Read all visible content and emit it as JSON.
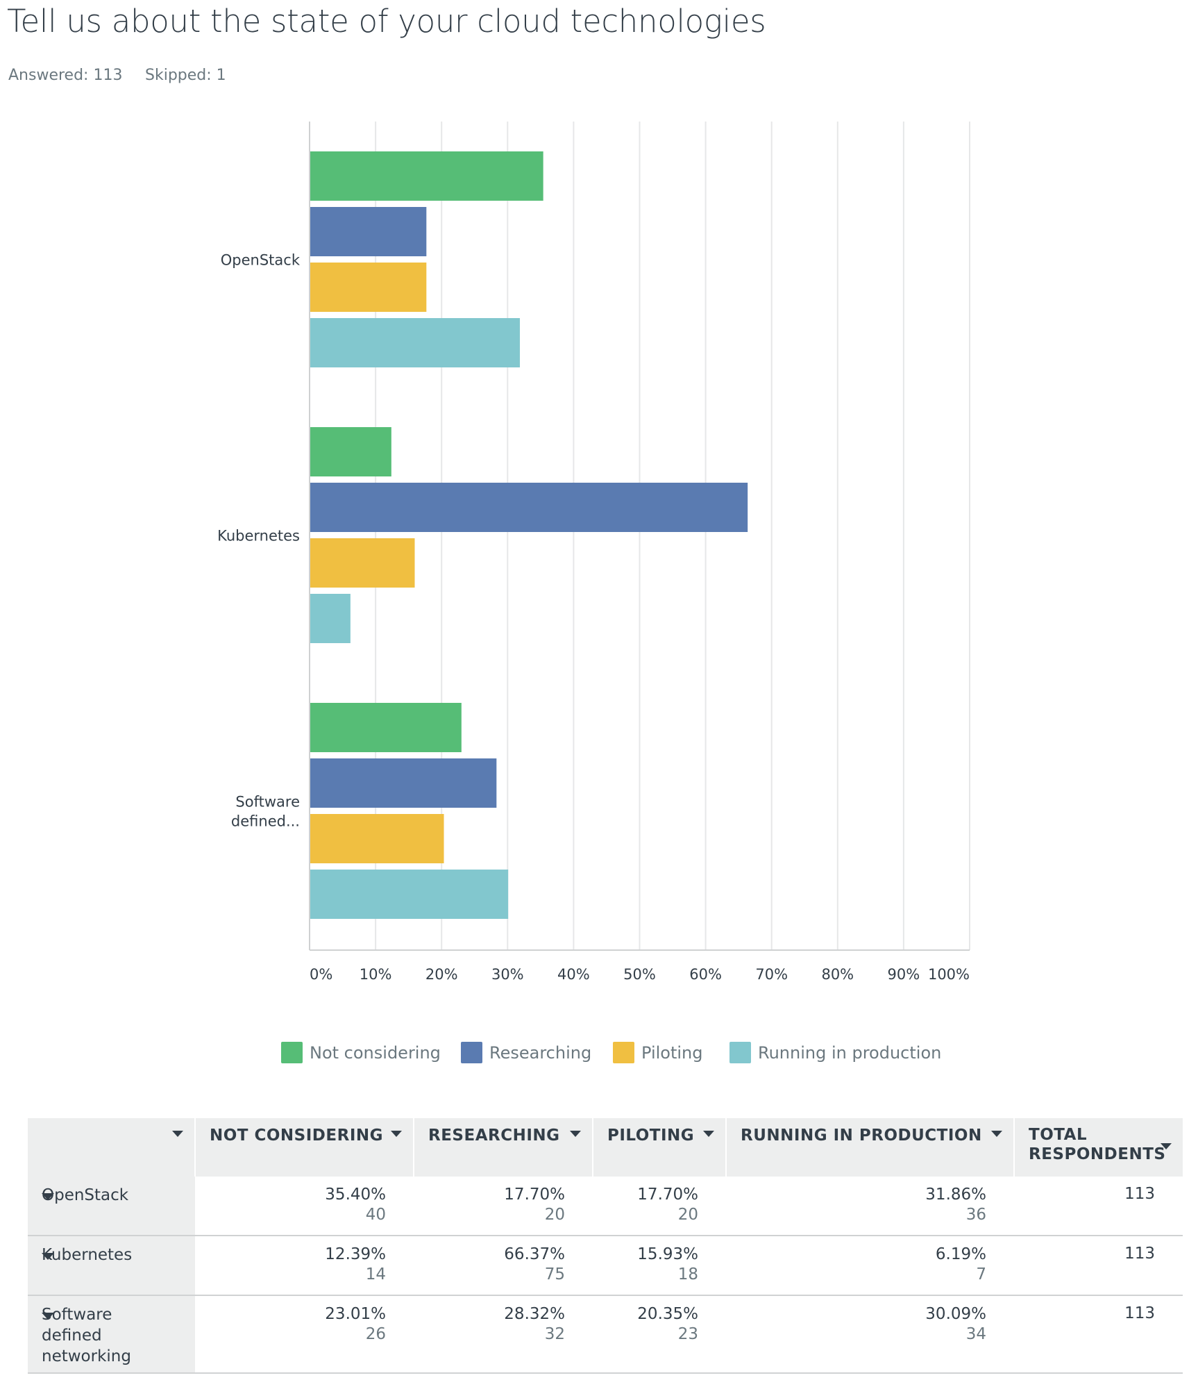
{
  "title": "Tell us about the state of your cloud technologies",
  "answered_label": "Answered: 113",
  "skipped_label": "Skipped: 1",
  "colors": {
    "not_considering": "#56bd76",
    "researching": "#5a7bb1",
    "piloting": "#f0bf41",
    "running": "#82c7ce"
  },
  "chart_data": {
    "type": "bar",
    "orientation": "horizontal",
    "categories": [
      "OpenStack",
      "Kubernetes",
      "Software defined..."
    ],
    "series": [
      {
        "name": "Not considering",
        "color": "#56bd76",
        "values": [
          35.4,
          12.39,
          23.01
        ]
      },
      {
        "name": "Researching",
        "color": "#5a7bb1",
        "values": [
          17.7,
          66.37,
          28.32
        ]
      },
      {
        "name": "Piloting",
        "color": "#f0bf41",
        "values": [
          17.7,
          15.93,
          20.35
        ]
      },
      {
        "name": "Running in production",
        "color": "#82c7ce",
        "values": [
          31.86,
          6.19,
          30.09
        ]
      }
    ],
    "xlim": [
      0,
      100
    ],
    "x_ticks": [
      "0%",
      "10%",
      "20%",
      "30%",
      "40%",
      "50%",
      "60%",
      "70%",
      "80%",
      "90%",
      "100%"
    ],
    "grid": true,
    "legend_position": "bottom"
  },
  "table": {
    "headers": [
      "",
      "NOT CONSIDERING",
      "RESEARCHING",
      "PILOTING",
      "RUNNING IN PRODUCTION",
      "TOTAL RESPONDENTS"
    ],
    "rows": [
      {
        "label": "OpenStack",
        "cells": [
          {
            "pct": "35.40%",
            "count": "40"
          },
          {
            "pct": "17.70%",
            "count": "20"
          },
          {
            "pct": "17.70%",
            "count": "20"
          },
          {
            "pct": "31.86%",
            "count": "36"
          }
        ],
        "total": "113"
      },
      {
        "label": "Kubernetes",
        "cells": [
          {
            "pct": "12.39%",
            "count": "14"
          },
          {
            "pct": "66.37%",
            "count": "75"
          },
          {
            "pct": "15.93%",
            "count": "18"
          },
          {
            "pct": "6.19%",
            "count": "7"
          }
        ],
        "total": "113"
      },
      {
        "label": "Software defined networking",
        "cells": [
          {
            "pct": "23.01%",
            "count": "26"
          },
          {
            "pct": "28.32%",
            "count": "32"
          },
          {
            "pct": "20.35%",
            "count": "23"
          },
          {
            "pct": "30.09%",
            "count": "34"
          }
        ],
        "total": "113"
      }
    ]
  }
}
